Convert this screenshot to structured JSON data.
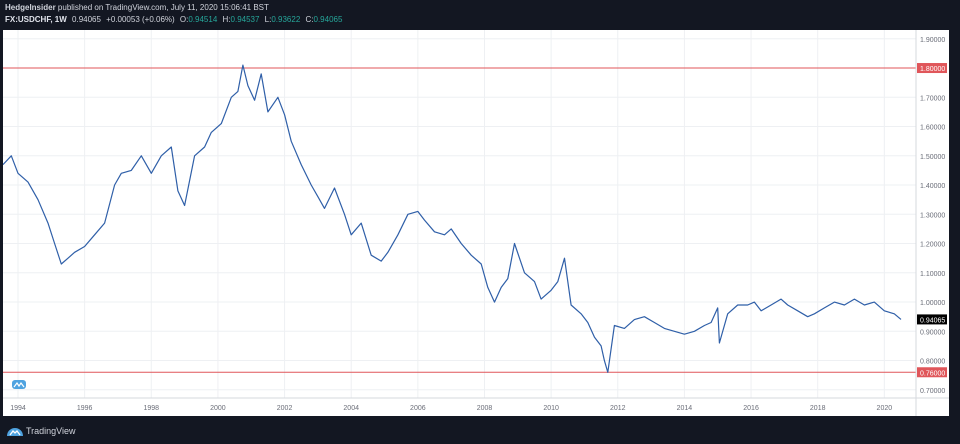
{
  "header": {
    "author": "HedgeInsider",
    "published": "published on TradingView.com, July 11, 2020 15:06:41 BST",
    "symbol": "FX:USDCHF, 1W",
    "last": "0.94065",
    "change": "+0.00053 (+0.06%)",
    "open_label": "O:",
    "open": "0.94514",
    "high_label": "H:",
    "high": "0.94537",
    "low_label": "L:",
    "low": "0.93622",
    "close_label": "C:",
    "close": "0.94065"
  },
  "footer": {
    "brand": "TradingView"
  },
  "colors": {
    "line": "#2f5fa8",
    "hline": "#e0565a",
    "up": "#26a69a",
    "bg": "#131722"
  },
  "chart_data": {
    "type": "line",
    "title": "",
    "xlabel": "",
    "ylabel": "",
    "x_ticks": [
      "1994",
      "1996",
      "1998",
      "2000",
      "2002",
      "2004",
      "2006",
      "2008",
      "2010",
      "2012",
      "2014",
      "2016",
      "2018",
      "2020"
    ],
    "y_ticks": [
      "1.90000",
      "1.80000",
      "1.70000",
      "1.60000",
      "1.50000",
      "1.40000",
      "1.30000",
      "1.20000",
      "1.10000",
      "1.00000",
      "0.90000",
      "0.80000",
      "0.70000"
    ],
    "xlim": [
      1993.55,
      2020.95
    ],
    "ylim": [
      0.672,
      1.93
    ],
    "grid": true,
    "axis_position": "right",
    "horizontal_lines": [
      {
        "value": 1.8,
        "label": "1.80000"
      },
      {
        "value": 0.76,
        "label": "0.76000"
      }
    ],
    "last_price_label": "0.94065",
    "series": [
      {
        "x": [
          1993.55,
          1993.8,
          1994.0,
          1994.3,
          1994.6,
          1994.9,
          1995.1,
          1995.3,
          1995.5,
          1995.7,
          1996.0,
          1996.3,
          1996.6,
          1996.9,
          1997.1,
          1997.4,
          1997.7,
          1998.0,
          1998.3,
          1998.6,
          1998.8,
          1999.0,
          1999.3,
          1999.6,
          1999.8,
          2000.1,
          2000.4,
          2000.6,
          2000.75,
          2000.9,
          2001.1,
          2001.3,
          2001.5,
          2001.8,
          2002.0,
          2002.2,
          2002.5,
          2002.8,
          2003.0,
          2003.2,
          2003.5,
          2003.8,
          2004.0,
          2004.3,
          2004.6,
          2004.9,
          2005.1,
          2005.4,
          2005.7,
          2006.0,
          2006.2,
          2006.5,
          2006.8,
          2007.0,
          2007.3,
          2007.6,
          2007.9,
          2008.1,
          2008.3,
          2008.5,
          2008.7,
          2008.9,
          2009.2,
          2009.5,
          2009.7,
          2010.0,
          2010.2,
          2010.4,
          2010.6,
          2010.9,
          2011.1,
          2011.3,
          2011.5,
          2011.6,
          2011.7,
          2011.9,
          2012.2,
          2012.5,
          2012.8,
          2013.1,
          2013.4,
          2013.7,
          2014.0,
          2014.3,
          2014.6,
          2014.8,
          2015.0,
          2015.05,
          2015.3,
          2015.6,
          2015.9,
          2016.1,
          2016.3,
          2016.6,
          2016.9,
          2017.1,
          2017.4,
          2017.7,
          2017.9,
          2018.2,
          2018.5,
          2018.8,
          2019.1,
          2019.4,
          2019.7,
          2020.0,
          2020.3,
          2020.5
        ],
        "y": [
          1.47,
          1.5,
          1.44,
          1.41,
          1.35,
          1.27,
          1.2,
          1.13,
          1.15,
          1.17,
          1.19,
          1.23,
          1.27,
          1.4,
          1.44,
          1.45,
          1.5,
          1.44,
          1.5,
          1.53,
          1.38,
          1.33,
          1.5,
          1.53,
          1.58,
          1.61,
          1.7,
          1.72,
          1.81,
          1.74,
          1.69,
          1.78,
          1.65,
          1.7,
          1.64,
          1.55,
          1.47,
          1.4,
          1.36,
          1.32,
          1.39,
          1.3,
          1.23,
          1.27,
          1.16,
          1.14,
          1.17,
          1.23,
          1.3,
          1.31,
          1.28,
          1.24,
          1.23,
          1.25,
          1.2,
          1.16,
          1.13,
          1.05,
          1.0,
          1.05,
          1.08,
          1.2,
          1.1,
          1.07,
          1.01,
          1.04,
          1.07,
          1.15,
          0.99,
          0.96,
          0.93,
          0.88,
          0.85,
          0.8,
          0.76,
          0.92,
          0.91,
          0.94,
          0.95,
          0.93,
          0.91,
          0.9,
          0.89,
          0.9,
          0.92,
          0.93,
          0.98,
          0.86,
          0.96,
          0.99,
          0.99,
          1.0,
          0.97,
          0.99,
          1.01,
          0.99,
          0.97,
          0.95,
          0.96,
          0.98,
          1.0,
          0.99,
          1.01,
          0.99,
          1.0,
          0.97,
          0.96,
          0.94065
        ]
      }
    ]
  }
}
